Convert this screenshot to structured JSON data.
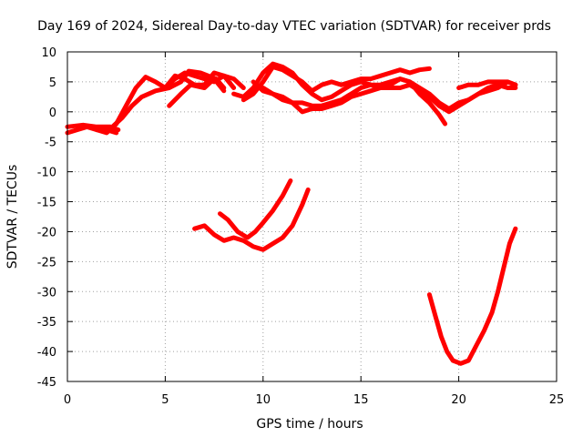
{
  "chart_data": {
    "type": "scatter",
    "title": "Day 169 of 2024, Sidereal Day-to-day VTEC variation (SDTVAR) for receiver prds",
    "xlabel": "GPS time / hours",
    "ylabel": "SDTVAR / TECUs",
    "xlim": [
      0,
      25
    ],
    "ylim": [
      -45,
      10
    ],
    "xticks": [
      0,
      5,
      10,
      15,
      20,
      25
    ],
    "yticks": [
      -45,
      -40,
      -35,
      -30,
      -25,
      -20,
      -15,
      -10,
      -5,
      0,
      5,
      10
    ],
    "grid": true,
    "legend": "none",
    "color": "#ff0000",
    "series": [
      {
        "name": "track-1",
        "points": [
          [
            0,
            -3.5
          ],
          [
            0.5,
            -3
          ],
          [
            1,
            -2.5
          ],
          [
            1.5,
            -3
          ],
          [
            2,
            -3
          ],
          [
            2.5,
            -3.5
          ]
        ]
      },
      {
        "name": "track-2",
        "points": [
          [
            0,
            -2.5
          ],
          [
            0.8,
            -2.2
          ],
          [
            1.5,
            -2.5
          ],
          [
            2.2,
            -2.5
          ],
          [
            2.6,
            -3
          ]
        ]
      },
      {
        "name": "track-3",
        "points": [
          [
            1.5,
            -3
          ],
          [
            2,
            -3.5
          ],
          [
            2.5,
            -2
          ],
          [
            3,
            1
          ],
          [
            3.5,
            4
          ],
          [
            4,
            5.8
          ],
          [
            4.5,
            5
          ],
          [
            5,
            4
          ],
          [
            5.5,
            5.5
          ],
          [
            6,
            6.5
          ],
          [
            6.5,
            6
          ],
          [
            7,
            5.5
          ],
          [
            7.5,
            5
          ],
          [
            8,
            6
          ],
          [
            8.5,
            5.5
          ],
          [
            9,
            4
          ]
        ]
      },
      {
        "name": "track-4",
        "points": [
          [
            2.3,
            -2.5
          ],
          [
            2.8,
            -1
          ],
          [
            3.3,
            1
          ],
          [
            3.8,
            2.5
          ],
          [
            4.5,
            3.5
          ],
          [
            5.2,
            4
          ],
          [
            5.8,
            5
          ],
          [
            6.2,
            6.8
          ],
          [
            6.8,
            6.5
          ],
          [
            7.2,
            6
          ],
          [
            7.6,
            5.5
          ],
          [
            8,
            4
          ]
        ]
      },
      {
        "name": "track-5",
        "points": [
          [
            5,
            4
          ],
          [
            5.5,
            6
          ],
          [
            6,
            5.5
          ],
          [
            6.5,
            4.5
          ],
          [
            7,
            4.5
          ],
          [
            7.5,
            6.5
          ],
          [
            8,
            6
          ],
          [
            8.5,
            4
          ]
        ]
      },
      {
        "name": "track-6",
        "points": [
          [
            5.2,
            1
          ],
          [
            5.8,
            3
          ],
          [
            6.3,
            4.5
          ],
          [
            7,
            4
          ],
          [
            7.5,
            5.5
          ],
          [
            8,
            3.5
          ]
        ]
      },
      {
        "name": "track-7",
        "points": [
          [
            9,
            2
          ],
          [
            9.5,
            3
          ],
          [
            10,
            5
          ],
          [
            10.5,
            7.5
          ],
          [
            11,
            7
          ],
          [
            11.5,
            6
          ],
          [
            12,
            5
          ],
          [
            12.5,
            3.5
          ],
          [
            13,
            4.5
          ],
          [
            13.5,
            5
          ],
          [
            14,
            4.5
          ],
          [
            14.5,
            5
          ],
          [
            15,
            5.5
          ],
          [
            15.5,
            5.5
          ],
          [
            16,
            6
          ],
          [
            16.5,
            6.5
          ],
          [
            17,
            7
          ],
          [
            17.5,
            6.5
          ],
          [
            18,
            7
          ],
          [
            18.5,
            7.2
          ]
        ]
      },
      {
        "name": "track-8",
        "points": [
          [
            8.5,
            3
          ],
          [
            9,
            2.5
          ],
          [
            9.5,
            4
          ],
          [
            10,
            6.5
          ],
          [
            10.5,
            8
          ],
          [
            11,
            7.5
          ],
          [
            11.5,
            6.5
          ],
          [
            12,
            4.5
          ],
          [
            12.5,
            3
          ],
          [
            13,
            2
          ],
          [
            13.5,
            2.5
          ],
          [
            14,
            3.5
          ],
          [
            14.5,
            4.5
          ],
          [
            15,
            5
          ],
          [
            15.5,
            4.5
          ],
          [
            16,
            4
          ],
          [
            16.5,
            4.5
          ],
          [
            17,
            5.5
          ],
          [
            17.5,
            5
          ],
          [
            18,
            3
          ],
          [
            18.5,
            1.5
          ],
          [
            19,
            -0.5
          ],
          [
            19.3,
            -2
          ]
        ]
      },
      {
        "name": "track-9",
        "points": [
          [
            9.5,
            5
          ],
          [
            10,
            3.5
          ],
          [
            10.5,
            3
          ],
          [
            11,
            2.5
          ],
          [
            11.5,
            1.5
          ],
          [
            12,
            0
          ],
          [
            12.5,
            0.5
          ],
          [
            13,
            0.5
          ],
          [
            13.5,
            1
          ],
          [
            14,
            1.5
          ],
          [
            14.5,
            2.5
          ],
          [
            15,
            3
          ],
          [
            15.5,
            3.5
          ],
          [
            16,
            4
          ],
          [
            16.5,
            4
          ],
          [
            17,
            4
          ],
          [
            17.5,
            4.5
          ],
          [
            18,
            3.5
          ],
          [
            18.5,
            2.5
          ],
          [
            19,
            1
          ],
          [
            19.5,
            0
          ],
          [
            20,
            1
          ],
          [
            20.5,
            2
          ],
          [
            21,
            3
          ],
          [
            21.5,
            3.5
          ],
          [
            22,
            4
          ],
          [
            22.5,
            5
          ],
          [
            22.9,
            4.5
          ]
        ]
      },
      {
        "name": "track-10",
        "points": [
          [
            10,
            4
          ],
          [
            10.5,
            3
          ],
          [
            11,
            2
          ],
          [
            11.5,
            1.5
          ],
          [
            12,
            1.5
          ],
          [
            12.5,
            1
          ],
          [
            13,
            1
          ],
          [
            13.5,
            1.5
          ],
          [
            14,
            2
          ],
          [
            14.5,
            3
          ],
          [
            15,
            4
          ],
          [
            15.5,
            4.5
          ],
          [
            16,
            4.5
          ],
          [
            16.5,
            5
          ],
          [
            17,
            5.5
          ],
          [
            17.5,
            5
          ],
          [
            18,
            4
          ],
          [
            18.5,
            3
          ],
          [
            19,
            1.5
          ],
          [
            19.5,
            0.5
          ],
          [
            20,
            1.5
          ],
          [
            20.5,
            2
          ],
          [
            21,
            3
          ],
          [
            21.5,
            4
          ],
          [
            22,
            4.5
          ],
          [
            22.5,
            4
          ],
          [
            22.9,
            4
          ]
        ]
      },
      {
        "name": "track-11",
        "points": [
          [
            20,
            4
          ],
          [
            20.5,
            4.5
          ],
          [
            21,
            4.5
          ],
          [
            21.5,
            5
          ],
          [
            22,
            5
          ],
          [
            22.5,
            5
          ],
          [
            22.9,
            4.5
          ]
        ]
      },
      {
        "name": "track-12",
        "points": [
          [
            6.5,
            -19.5
          ],
          [
            7,
            -19
          ],
          [
            7.5,
            -20.5
          ],
          [
            8,
            -21.5
          ],
          [
            8.5,
            -21
          ],
          [
            9,
            -21.5
          ],
          [
            9.5,
            -22.5
          ],
          [
            10,
            -23
          ],
          [
            10.5,
            -22
          ],
          [
            11,
            -21
          ],
          [
            11.5,
            -19
          ],
          [
            12,
            -15.5
          ],
          [
            12.3,
            -13
          ]
        ]
      },
      {
        "name": "track-13",
        "points": [
          [
            7.8,
            -17
          ],
          [
            8.2,
            -18
          ],
          [
            8.7,
            -20
          ],
          [
            9.2,
            -21
          ],
          [
            9.6,
            -20
          ],
          [
            10,
            -18.5
          ],
          [
            10.5,
            -16.5
          ],
          [
            11,
            -14
          ],
          [
            11.4,
            -11.5
          ]
        ]
      },
      {
        "name": "track-14",
        "points": [
          [
            18.5,
            -30.5
          ],
          [
            18.8,
            -34
          ],
          [
            19.1,
            -37.5
          ],
          [
            19.4,
            -40
          ],
          [
            19.7,
            -41.5
          ],
          [
            20.1,
            -42
          ],
          [
            20.5,
            -41.5
          ],
          [
            20.9,
            -39
          ],
          [
            21.3,
            -36.5
          ],
          [
            21.7,
            -33.5
          ],
          [
            22,
            -30
          ],
          [
            22.3,
            -26
          ],
          [
            22.6,
            -22
          ],
          [
            22.9,
            -19.5
          ]
        ]
      }
    ]
  }
}
